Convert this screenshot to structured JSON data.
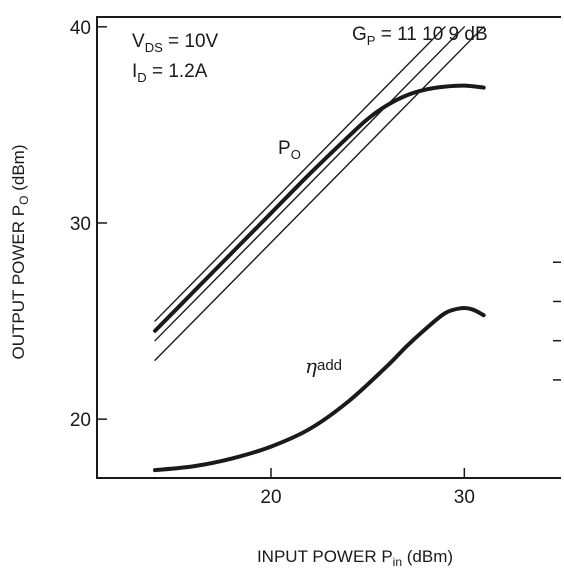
{
  "chart_data": {
    "type": "line",
    "xlabel": "INPUT POWER",
    "xlabel_sym": "P",
    "xlabel_sub": "in",
    "xlabel_unit": "(dBm)",
    "ylabel": "OUTPUT POWER",
    "ylabel_sym": "P",
    "ylabel_sub": "O",
    "ylabel_unit": "(dBm)",
    "xlim": [
      11,
      35
    ],
    "ylim": [
      17,
      40.5
    ],
    "x_ticks": [
      20,
      30
    ],
    "y_ticks": [
      20,
      30,
      40
    ],
    "right_minor_ticks": [
      22,
      24,
      26,
      28
    ],
    "grid": false,
    "annotations": {
      "vds": {
        "sym": "V",
        "sub": "DS",
        "rest": " = 10V"
      },
      "id": {
        "sym": "I",
        "sub": "D",
        "rest": " = 1.2A"
      },
      "gp_prefix": {
        "sym": "G",
        "sub": "P",
        "rest": " = "
      },
      "gp_values": [
        "11",
        "10",
        "9"
      ],
      "gp_unit": "dB",
      "po_label": {
        "sym": "P",
        "sub": "O"
      },
      "eta_label": {
        "sym": "η",
        "sub": "add"
      }
    },
    "series": [
      {
        "key": "gain_11",
        "x": [
          14,
          29
        ],
        "y": [
          25,
          40
        ],
        "style": "thin"
      },
      {
        "key": "gain_10",
        "x": [
          14,
          30
        ],
        "y": [
          24,
          40
        ],
        "style": "thin"
      },
      {
        "key": "gain_9",
        "x": [
          14,
          31
        ],
        "y": [
          23,
          40
        ],
        "style": "thin"
      },
      {
        "key": "po",
        "x": [
          14,
          16,
          18,
          20,
          22,
          24,
          25,
          26,
          27,
          28,
          29,
          30,
          31
        ],
        "y": [
          24.5,
          26.5,
          28.5,
          30.5,
          32.5,
          34.4,
          35.3,
          36.0,
          36.5,
          36.8,
          36.95,
          37.0,
          36.9
        ],
        "style": "thick"
      },
      {
        "key": "eta_add",
        "x": [
          14,
          16,
          18,
          20,
          22,
          24,
          26,
          27,
          28,
          29,
          29.8,
          30.4,
          31
        ],
        "y": [
          17.4,
          17.6,
          18.0,
          18.6,
          19.5,
          20.9,
          22.7,
          23.7,
          24.6,
          25.4,
          25.65,
          25.6,
          25.3
        ],
        "style": "thick"
      }
    ]
  }
}
